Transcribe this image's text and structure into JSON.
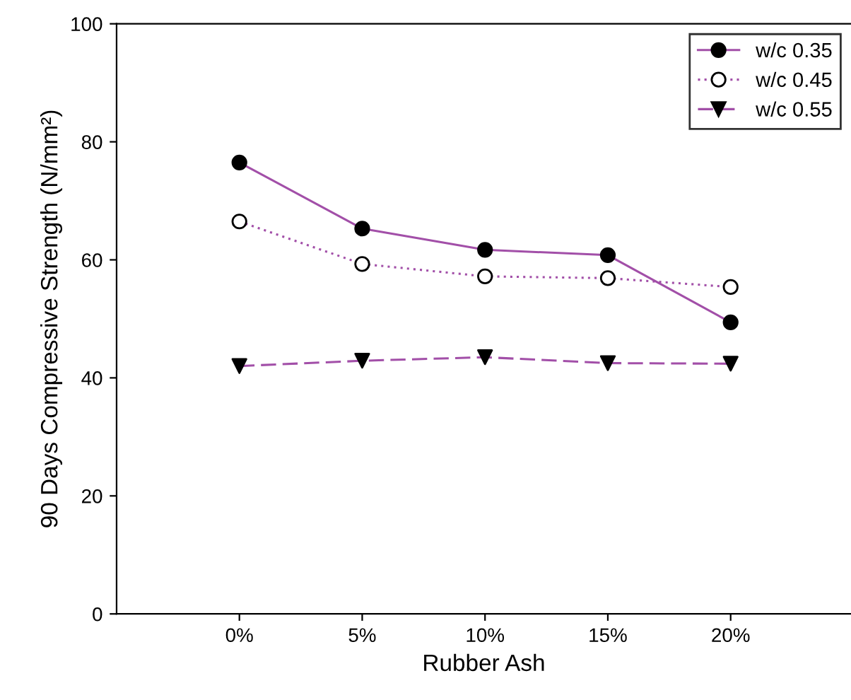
{
  "chart_data": {
    "type": "line",
    "xlabel": "Rubber Ash",
    "ylabel": "90 Days Compressive Strength (N/mm²)",
    "categories": [
      "0%",
      "5%",
      "10%",
      "15%",
      "20%"
    ],
    "ylim": [
      0,
      100
    ],
    "yticks": [
      0,
      20,
      40,
      60,
      80,
      100
    ],
    "grid": false,
    "legend": "top right",
    "series": [
      {
        "name": "w/c 0.35",
        "color": "#a24fa8",
        "marker": "circle",
        "colors": [
          "#000000",
          "#000000",
          "#000000",
          "#000000",
          "#000000"
        ],
        "line_style": "solid",
        "values": [
          76.5,
          65.3,
          61.7,
          60.8,
          49.4
        ]
      },
      {
        "name": "w/c 0.45",
        "color": "#a24fa8",
        "marker": "circle",
        "colors": [
          "#ffffff",
          "#ffffff",
          "#ffffff",
          "#ffffff",
          "#ffffff"
        ],
        "line_style": "dotted",
        "values": [
          66.5,
          59.3,
          57.2,
          56.9,
          55.4
        ]
      },
      {
        "name": "w/c 0.55",
        "color": "#a24fa8",
        "marker": "triangle",
        "colors": [
          "#000000",
          "#000000",
          "#000000",
          "#000000",
          "#000000"
        ],
        "line_style": "dashed",
        "values": [
          42.0,
          42.9,
          43.5,
          42.5,
          42.4
        ]
      }
    ]
  }
}
